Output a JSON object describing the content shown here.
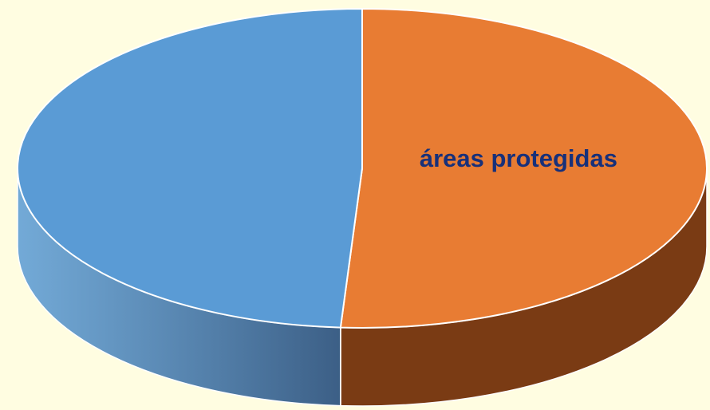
{
  "chart_data": {
    "type": "pie",
    "style": "3d",
    "start_angle_deg": 0,
    "direction": "clockwise",
    "slices": [
      {
        "label": "áreas protegidas",
        "value": 51,
        "color": "#e87c33",
        "shadow_color": "#7a3b14",
        "show_label": true
      },
      {
        "label": "",
        "value": 49,
        "color": "#5a9bd5",
        "shadow_color": "#3c5f86",
        "show_label": false
      }
    ],
    "label_color": "#17307a",
    "background": "#fffde1"
  }
}
